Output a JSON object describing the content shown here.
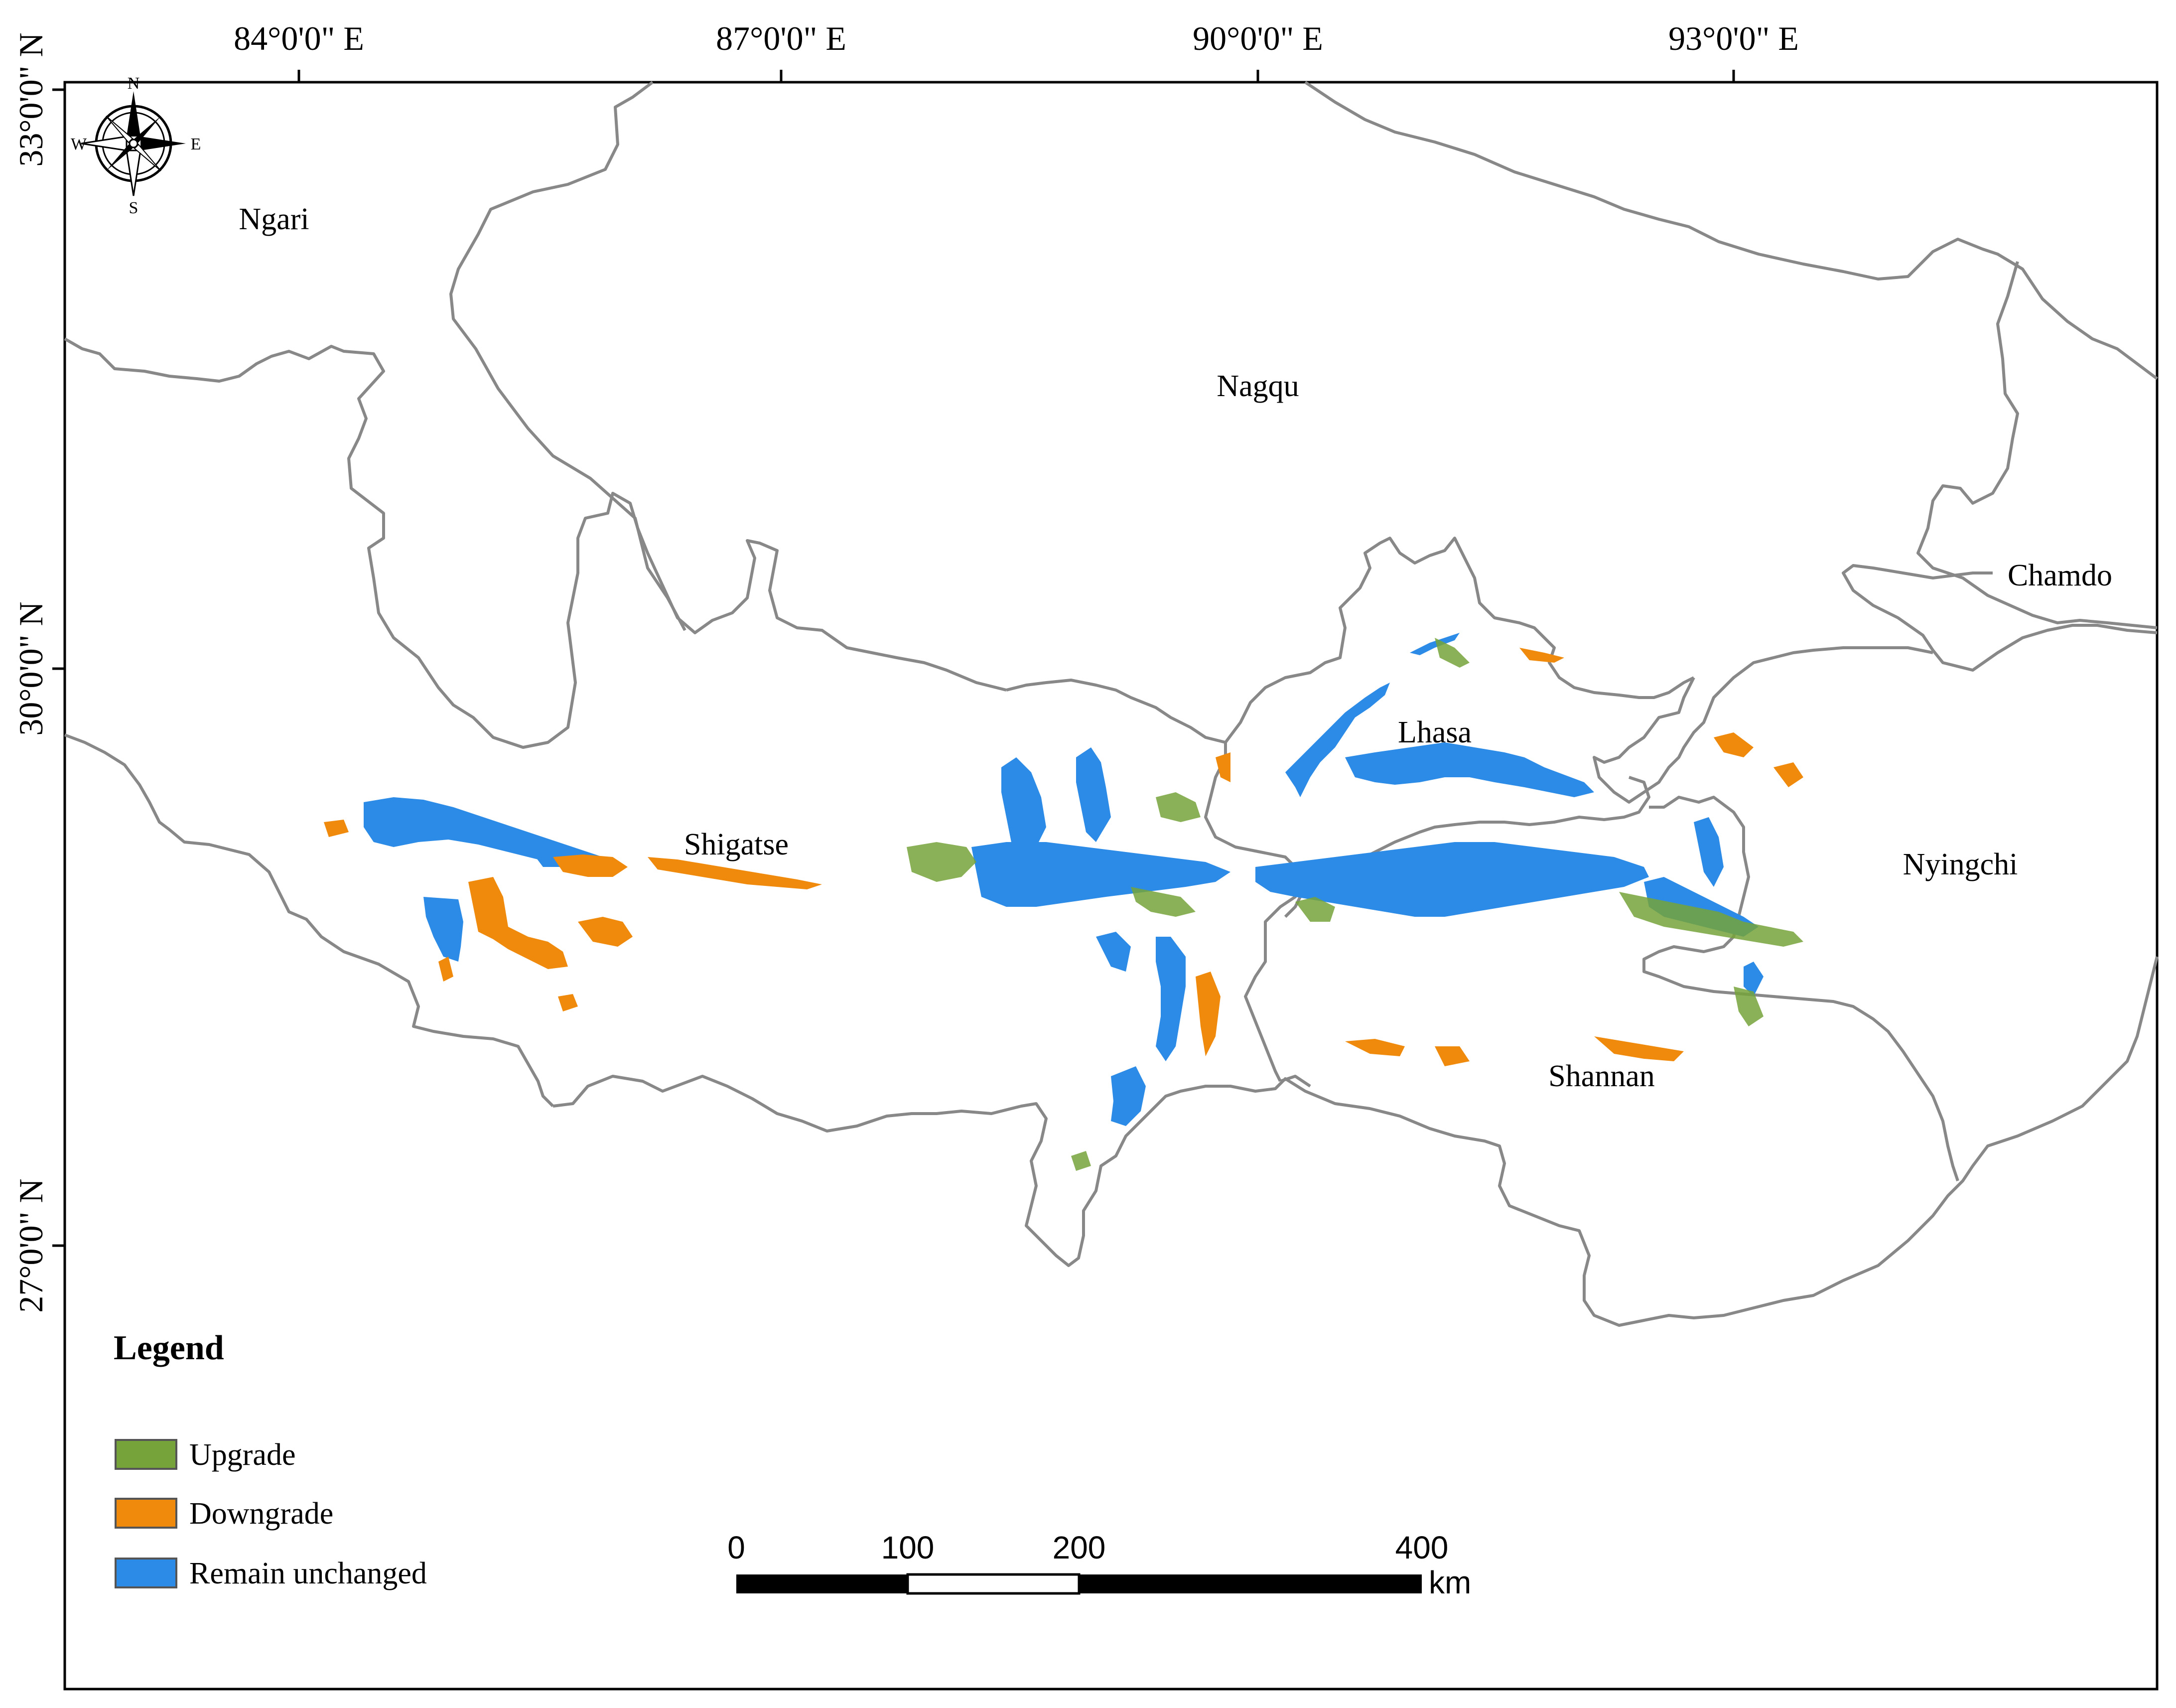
{
  "map": {
    "coordinates": {
      "longitude_labels": [
        "84°0'0\" E",
        "87°0'0\" E",
        "90°0'0\" E",
        "93°0'0\" E"
      ],
      "latitude_labels": [
        "33°0'0\" N",
        "30°0'0\" N",
        "27°0'0\" N"
      ]
    },
    "regions": [
      "Ngari",
      "Nagqu",
      "Chamdo",
      "Lhasa",
      "Shigatse",
      "Nyingchi",
      "Shannan"
    ],
    "compass": {
      "north": "N",
      "south": "S",
      "east": "E",
      "west": "W"
    },
    "legend": {
      "title": "Legend",
      "items": [
        {
          "label": "Upgrade",
          "color": "#76a33a"
        },
        {
          "label": "Downgrade",
          "color": "#ef8a0c"
        },
        {
          "label": "Remain unchanged",
          "color": "#2c8be6"
        }
      ]
    },
    "scale_bar": {
      "ticks": [
        "0",
        "100",
        "200",
        "400"
      ],
      "unit": "km"
    },
    "colors": {
      "boundary": "#888888",
      "frame": "#000000",
      "upgrade": "#76a33a",
      "downgrade": "#ef8a0c",
      "unchanged": "#2c8be6"
    }
  }
}
